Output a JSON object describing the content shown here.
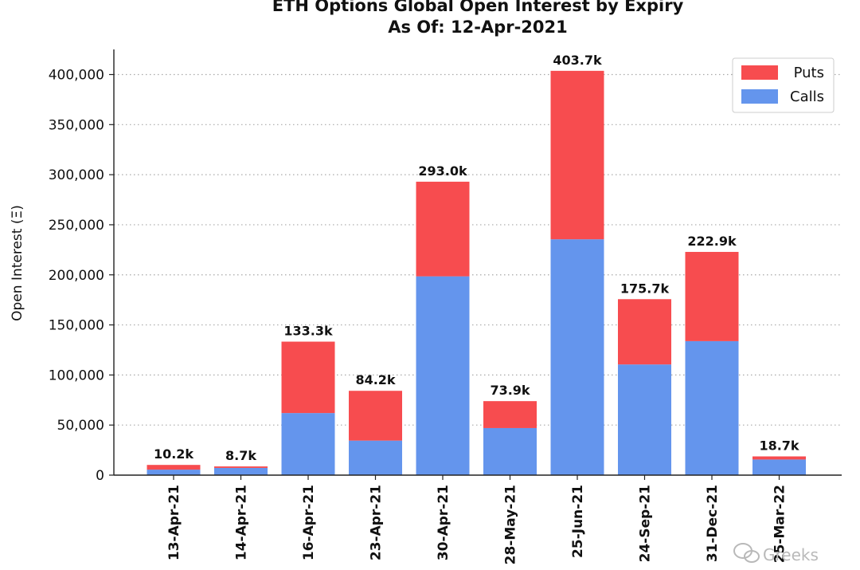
{
  "chart_data": {
    "type": "bar",
    "stacked": true,
    "title": "ETH Options Global Open Interest by Expiry",
    "subtitle": "As Of: 12-Apr-2021",
    "ylabel": "Open Interest (Ξ)",
    "xlabel": "",
    "ylim": [
      0,
      425000
    ],
    "yticks": [
      0,
      50000,
      100000,
      150000,
      200000,
      250000,
      300000,
      350000,
      400000
    ],
    "ytick_labels": [
      "0",
      "50,000",
      "100,000",
      "150,000",
      "200,000",
      "250,000",
      "300,000",
      "350,000",
      "400,000"
    ],
    "grid": "horizontal dotted",
    "legend_position": "top-right",
    "categories": [
      "13-Apr-21",
      "14-Apr-21",
      "16-Apr-21",
      "23-Apr-21",
      "30-Apr-21",
      "28-May-21",
      "25-Jun-21",
      "24-Sep-21",
      "31-Dec-21",
      "25-Mar-22"
    ],
    "series": [
      {
        "name": "Calls",
        "color": "#6495ED",
        "values": [
          5500,
          7200,
          62000,
          34500,
          198500,
          47000,
          235500,
          110500,
          133800,
          15600
        ]
      },
      {
        "name": "Puts",
        "color": "#F74C4F",
        "values": [
          4700,
          1500,
          71300,
          49700,
          94500,
          26900,
          168200,
          65200,
          89100,
          3100
        ]
      }
    ],
    "totals": [
      10200,
      8700,
      133300,
      84200,
      293000,
      73900,
      403700,
      175700,
      222900,
      18700
    ],
    "total_labels": [
      "10.2k",
      "8.7k",
      "133.3k",
      "84.2k",
      "293.0k",
      "73.9k",
      "403.7k",
      "175.7k",
      "222.9k",
      "18.7k"
    ],
    "legend": [
      "Puts",
      "Calls"
    ]
  },
  "watermark": "Greeks"
}
